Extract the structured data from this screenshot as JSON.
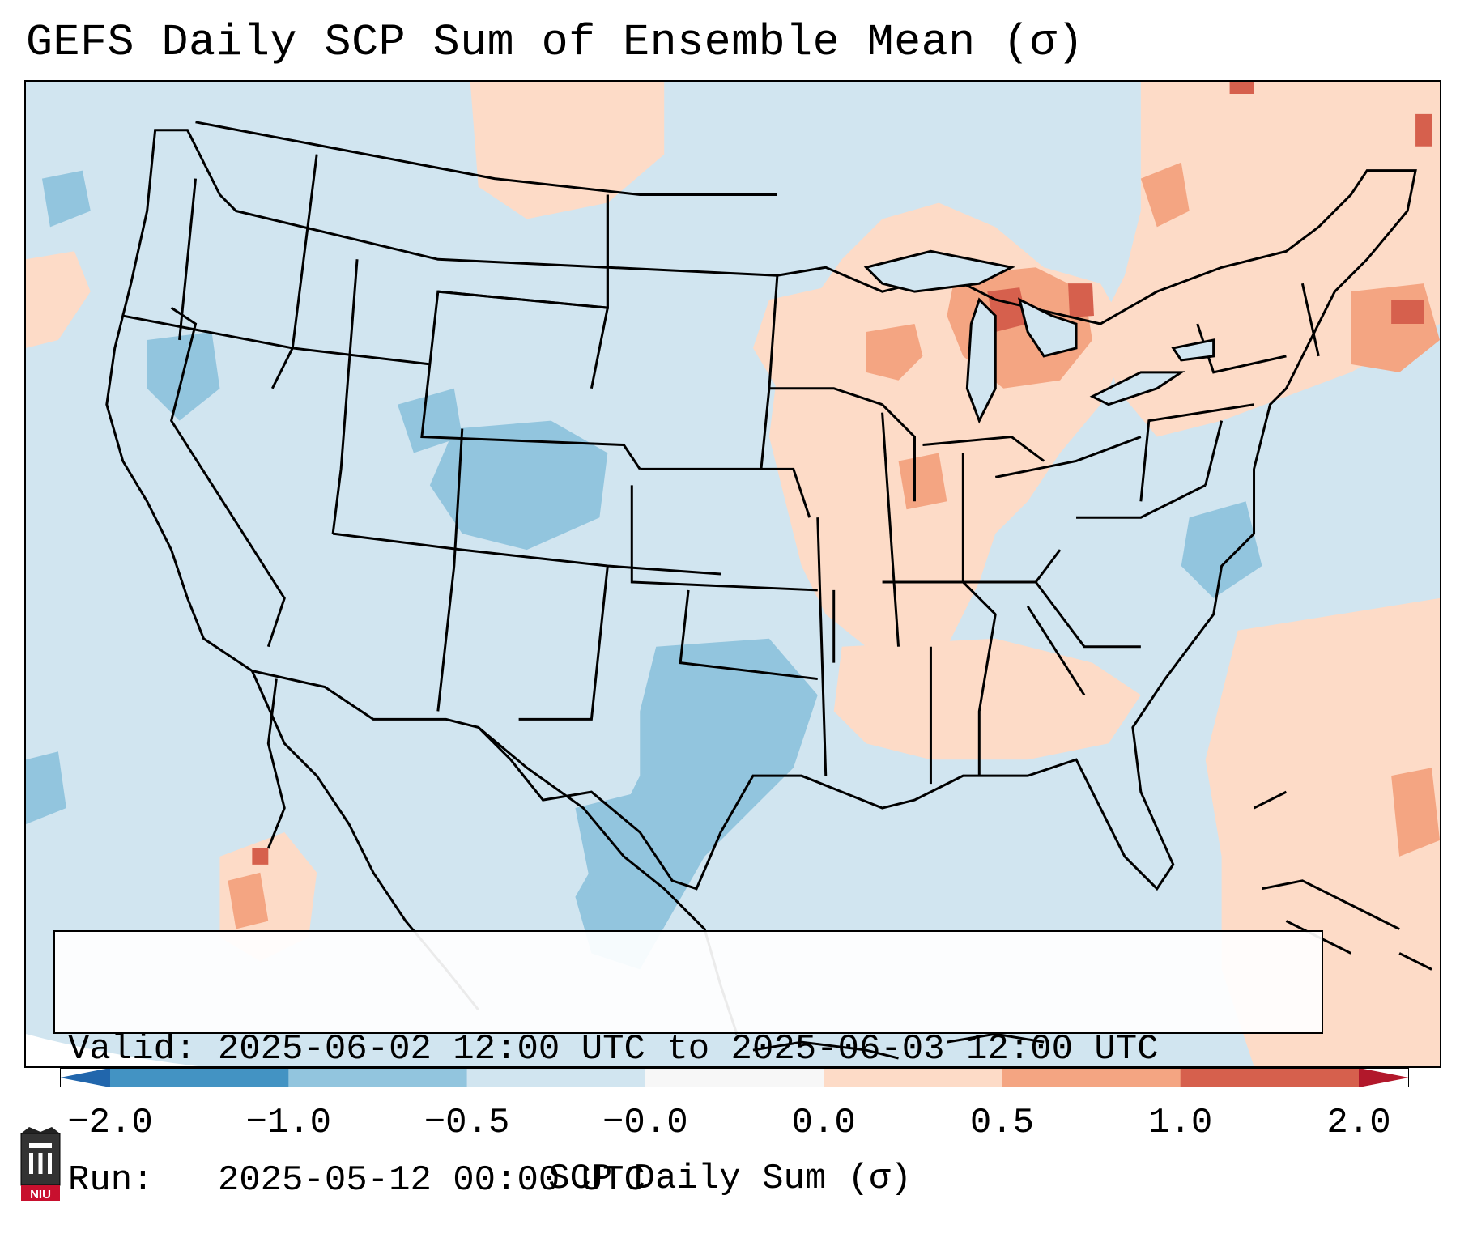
{
  "title": "GEFS Daily SCP Sum of Ensemble Mean (σ)",
  "info": {
    "valid": "Valid: 2025-06-02 12:00 UTC to 2025-06-03 12:00 UTC",
    "run": "Run:   2025-05-12 00:00 UTC"
  },
  "colorbar": {
    "label": "SCP Daily Sum (σ)",
    "ticks": [
      "−2.0",
      "−1.0",
      "−0.5",
      "−0.0",
      "0.0",
      "0.5",
      "1.0",
      "2.0"
    ],
    "bins": [
      {
        "color": "#2166ac"
      },
      {
        "color": "#4393c3"
      },
      {
        "color": "#92c5de"
      },
      {
        "color": "#d1e5f0"
      },
      {
        "color": "#f7f7f7"
      },
      {
        "color": "#fddbc7"
      },
      {
        "color": "#f4a582"
      },
      {
        "color": "#d6604d"
      },
      {
        "color": "#b2182b"
      }
    ],
    "extend": "both"
  },
  "colors": {
    "background_mean": "#d1e5f0",
    "negative_region": "#92c5de",
    "positive_region": "#fddbc7",
    "stronger_positive": "#f4a582",
    "strongest_positive": "#d6604d"
  },
  "logo": {
    "name": "NIU",
    "text": "NIU"
  }
}
